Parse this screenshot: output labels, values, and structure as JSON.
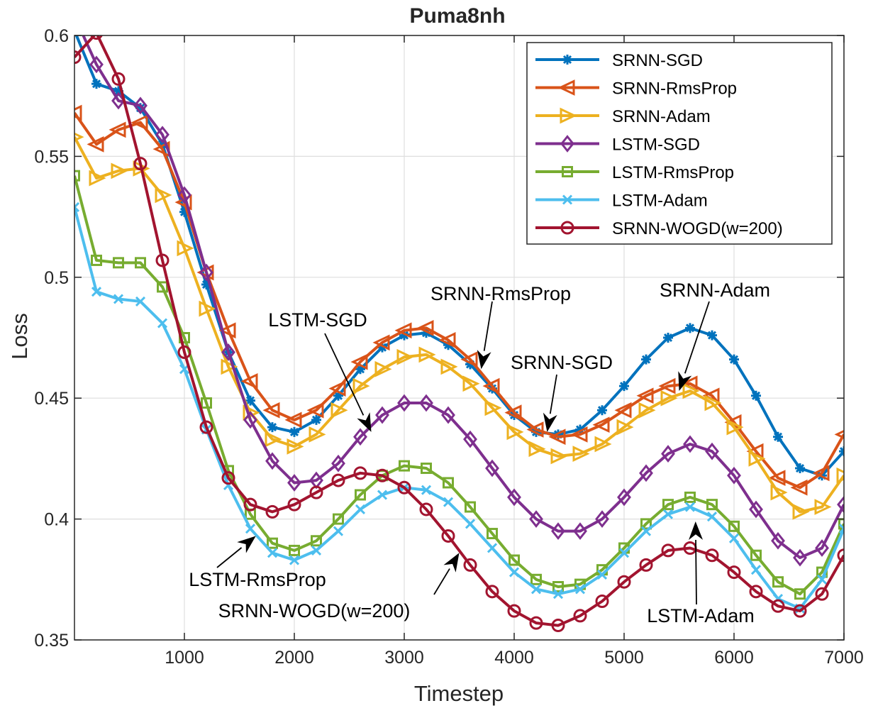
{
  "chart_data": {
    "type": "line",
    "title": "Puma8nh",
    "xlabel": "Timestep",
    "ylabel": "Loss",
    "xlim": [
      0,
      7000
    ],
    "ylim": [
      0.35,
      0.6
    ],
    "xticks": [
      1000,
      2000,
      3000,
      4000,
      5000,
      6000,
      7000
    ],
    "xtick_labels": [
      "1000",
      "2000",
      "3000",
      "4000",
      "5000",
      "6000",
      "7000"
    ],
    "yticks": [
      0.35,
      0.4,
      0.45,
      0.5,
      0.55,
      0.6
    ],
    "ytick_labels": [
      "0.35",
      "0.4",
      "0.45",
      "0.5",
      "0.55",
      "0.6"
    ],
    "grid": true,
    "legend_position": "top-right",
    "x": [
      0,
      200,
      400,
      600,
      800,
      1000,
      1200,
      1400,
      1600,
      1800,
      2000,
      2200,
      2400,
      2600,
      2800,
      3000,
      3200,
      3400,
      3600,
      3800,
      4000,
      4200,
      4400,
      4600,
      4800,
      5000,
      5200,
      5400,
      5600,
      5800,
      6000,
      6200,
      6400,
      6600,
      6800,
      7000
    ],
    "series": [
      {
        "name": "SRNN-SGD",
        "color": "#0072BD",
        "marker": "asterisk",
        "values": [
          0.602,
          0.58,
          0.577,
          0.57,
          0.555,
          0.527,
          0.497,
          0.469,
          0.449,
          0.438,
          0.436,
          0.441,
          0.451,
          0.462,
          0.471,
          0.476,
          0.477,
          0.472,
          0.464,
          0.454,
          0.443,
          0.436,
          0.435,
          0.437,
          0.445,
          0.455,
          0.466,
          0.475,
          0.479,
          0.476,
          0.466,
          0.451,
          0.434,
          0.421,
          0.418,
          0.428
        ]
      },
      {
        "name": "SRNN-RmsProp",
        "color": "#D95319",
        "marker": "triangle-left",
        "values": [
          0.568,
          0.555,
          0.561,
          0.564,
          0.553,
          0.531,
          0.502,
          0.478,
          0.457,
          0.445,
          0.441,
          0.445,
          0.454,
          0.465,
          0.473,
          0.478,
          0.479,
          0.474,
          0.466,
          0.455,
          0.444,
          0.437,
          0.434,
          0.435,
          0.439,
          0.445,
          0.451,
          0.455,
          0.456,
          0.451,
          0.44,
          0.428,
          0.417,
          0.413,
          0.419,
          0.435
        ]
      },
      {
        "name": "SRNN-Adam",
        "color": "#EDB120",
        "marker": "triangle-right",
        "values": [
          0.558,
          0.541,
          0.544,
          0.545,
          0.534,
          0.512,
          0.487,
          0.463,
          0.444,
          0.433,
          0.43,
          0.435,
          0.445,
          0.455,
          0.462,
          0.467,
          0.468,
          0.463,
          0.456,
          0.446,
          0.436,
          0.429,
          0.426,
          0.427,
          0.431,
          0.438,
          0.445,
          0.45,
          0.453,
          0.448,
          0.438,
          0.425,
          0.411,
          0.403,
          0.405,
          0.418
        ]
      },
      {
        "name": "LSTM-SGD",
        "color": "#7E2F8E",
        "marker": "diamond",
        "values": [
          0.608,
          0.588,
          0.573,
          0.571,
          0.559,
          0.534,
          0.502,
          0.469,
          0.441,
          0.424,
          0.415,
          0.416,
          0.423,
          0.434,
          0.443,
          0.448,
          0.448,
          0.443,
          0.433,
          0.421,
          0.409,
          0.4,
          0.395,
          0.395,
          0.4,
          0.409,
          0.419,
          0.427,
          0.431,
          0.428,
          0.418,
          0.404,
          0.391,
          0.384,
          0.388,
          0.406
        ]
      },
      {
        "name": "LSTM-RmsProp",
        "color": "#77AC30",
        "marker": "square",
        "values": [
          0.542,
          0.507,
          0.506,
          0.506,
          0.496,
          0.475,
          0.448,
          0.42,
          0.402,
          0.39,
          0.387,
          0.391,
          0.4,
          0.41,
          0.418,
          0.422,
          0.421,
          0.415,
          0.405,
          0.394,
          0.383,
          0.375,
          0.372,
          0.373,
          0.379,
          0.388,
          0.398,
          0.406,
          0.409,
          0.406,
          0.397,
          0.385,
          0.374,
          0.369,
          0.378,
          0.398
        ]
      },
      {
        "name": "LSTM-Adam",
        "color": "#4DBEEE",
        "marker": "x",
        "values": [
          0.529,
          0.494,
          0.491,
          0.49,
          0.481,
          0.462,
          0.437,
          0.414,
          0.396,
          0.386,
          0.383,
          0.387,
          0.395,
          0.404,
          0.41,
          0.413,
          0.412,
          0.407,
          0.398,
          0.388,
          0.378,
          0.371,
          0.369,
          0.371,
          0.377,
          0.386,
          0.395,
          0.402,
          0.405,
          0.401,
          0.392,
          0.379,
          0.367,
          0.363,
          0.375,
          0.396
        ]
      },
      {
        "name": "SRNN-WOGD(w=200)",
        "color": "#A2142F",
        "marker": "circle",
        "values": [
          0.591,
          0.601,
          0.582,
          0.547,
          0.507,
          0.469,
          0.438,
          0.417,
          0.406,
          0.403,
          0.406,
          0.411,
          0.416,
          0.419,
          0.418,
          0.413,
          0.404,
          0.393,
          0.381,
          0.37,
          0.362,
          0.357,
          0.356,
          0.36,
          0.366,
          0.374,
          0.381,
          0.387,
          0.388,
          0.385,
          0.378,
          0.37,
          0.364,
          0.362,
          0.369,
          0.385
        ]
      }
    ],
    "annotations": [
      {
        "text": "SRNN-RmsProp",
        "target_x": 3700,
        "target_y": 0.462
      },
      {
        "text": "SRNN-Adam",
        "target_x": 5500,
        "target_y": 0.453
      },
      {
        "text": "LSTM-SGD",
        "target_x": 2700,
        "target_y": 0.436
      },
      {
        "text": "SRNN-SGD",
        "target_x": 4300,
        "target_y": 0.436
      },
      {
        "text": "LSTM-RmsProp",
        "target_x": 1650,
        "target_y": 0.393
      },
      {
        "text": "SRNN-WOGD(w=200)",
        "target_x": 3500,
        "target_y": 0.386
      },
      {
        "text": "LSTM-Adam",
        "target_x": 5650,
        "target_y": 0.399
      }
    ]
  }
}
